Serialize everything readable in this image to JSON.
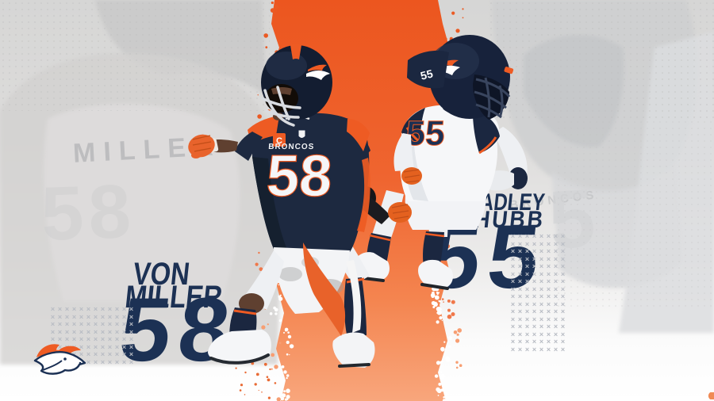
{
  "scene": {
    "left_player": {
      "first_name": "VON",
      "last_name": "MILLER",
      "big_number": "58"
    },
    "right_player": {
      "first_name": "BRADLEY",
      "last_name": "CHUBB",
      "big_number": "55"
    },
    "miller_jersey": {
      "number": "58",
      "wordmark": "BRONCOS",
      "captain_badge": "C"
    },
    "chubb_jersey": {
      "number": "55",
      "shoulder_number": "55"
    },
    "background": {
      "nameplate": "MILLER",
      "faint_number_left": "58",
      "faint_wordmark": "BRONCOS",
      "faint_number_right": "5"
    },
    "logo": {
      "label": "denver-broncos-horse-logo"
    },
    "colors": {
      "navy_text": "#1c3154",
      "jersey_navy": "#1d2940",
      "orange": "#ee5b23",
      "stripe_top": "#ec561f",
      "stripe_bottom": "#f8a67c",
      "pattern_gray": "#b7bbc3"
    },
    "pattern": {
      "glyph": "×",
      "left_grid": {
        "cols": 12,
        "rows": 8
      },
      "right_grid": {
        "cols": 8,
        "rows": 16
      }
    }
  }
}
